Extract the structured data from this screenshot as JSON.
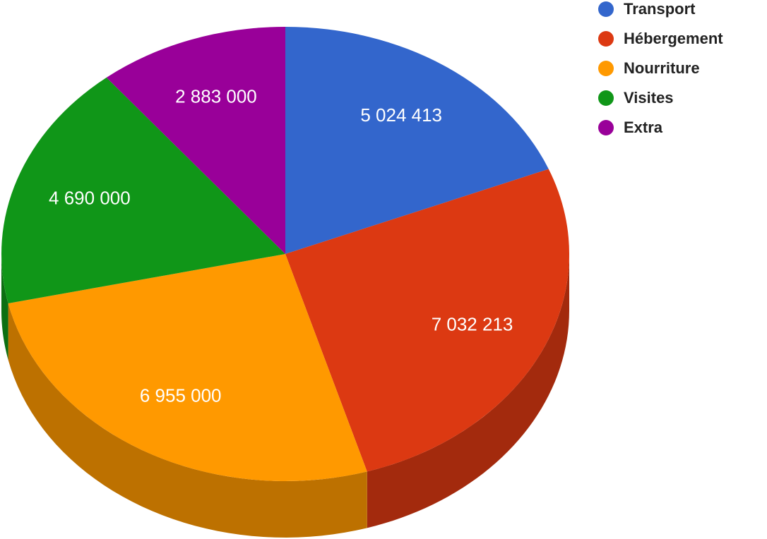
{
  "chart_data": {
    "type": "pie",
    "is_3d": true,
    "categories": [
      "Transport",
      "Hébergement",
      "Nourriture",
      "Visites",
      "Extra"
    ],
    "values": [
      5024413,
      7032213,
      6955000,
      4690000,
      2883000
    ],
    "value_labels": [
      "5 024 413",
      "7 032 213",
      "6 955 000",
      "4 690 000",
      "2 883 000"
    ],
    "colors": [
      "#3366cc",
      "#dc3912",
      "#ff9900",
      "#109618",
      "#990099"
    ],
    "legend": "top-right"
  }
}
